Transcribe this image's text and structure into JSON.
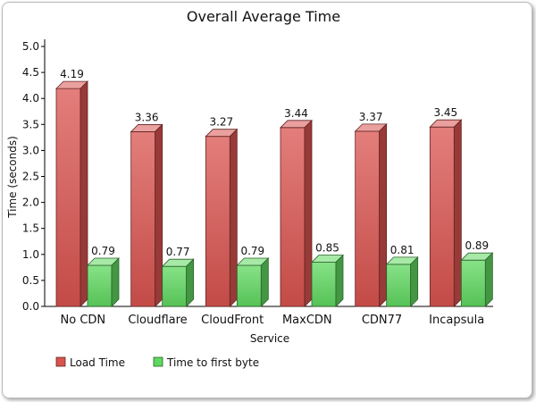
{
  "chart_data": {
    "type": "bar",
    "title": "Overall Average Time",
    "xlabel": "Service",
    "ylabel": "Time (seconds)",
    "ylim": [
      0,
      5.0
    ],
    "yticks": [
      "0.0",
      "0.5",
      "1.0",
      "1.5",
      "2.0",
      "2.5",
      "3.0",
      "3.5",
      "4.0",
      "4.5",
      "5.0"
    ],
    "categories": [
      "No CDN",
      "Cloudflare",
      "CloudFront",
      "MaxCDN",
      "CDN77",
      "Incapsula"
    ],
    "series": [
      {
        "name": "Load Time",
        "color": "#d9534f",
        "values": [
          4.19,
          3.36,
          3.27,
          3.44,
          3.37,
          3.45
        ],
        "labels": [
          "4.19",
          "3.36",
          "3.27",
          "3.44",
          "3.37",
          "3.45"
        ]
      },
      {
        "name": "Time to first byte",
        "color": "#5fd85f",
        "values": [
          0.79,
          0.77,
          0.79,
          0.85,
          0.81,
          0.89
        ],
        "labels": [
          "0.79",
          "0.77",
          "0.79",
          "0.85",
          "0.81",
          "0.89"
        ]
      }
    ],
    "grid": false,
    "legend": "bottom-left",
    "style": "3d-bars"
  }
}
